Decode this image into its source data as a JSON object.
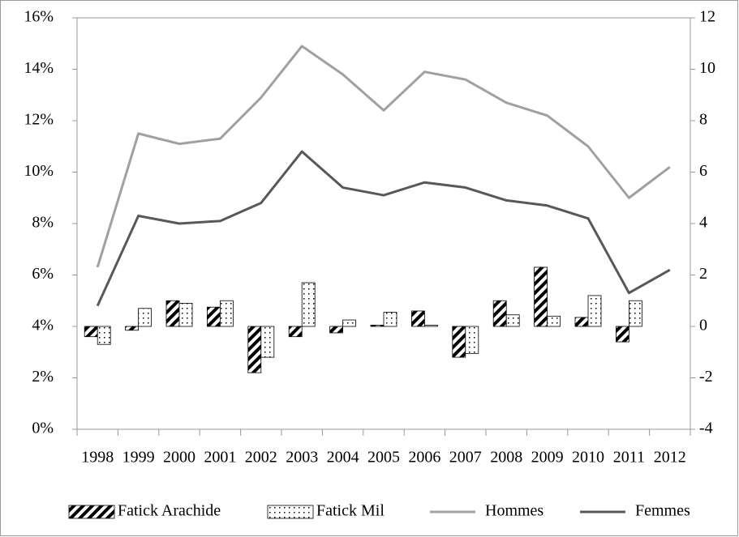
{
  "chart_data": {
    "type": "bar-line",
    "categories": [
      "1998",
      "1999",
      "2000",
      "2001",
      "2002",
      "2003",
      "2004",
      "2005",
      "2006",
      "2007",
      "2008",
      "2009",
      "2010",
      "2011",
      "2012"
    ],
    "ylim": [
      0,
      16
    ],
    "yticks": [
      {
        "value": 0,
        "label": "0%"
      },
      {
        "value": 2,
        "label": "2%"
      },
      {
        "value": 4,
        "label": "4%"
      },
      {
        "value": 6,
        "label": "6%"
      },
      {
        "value": 8,
        "label": "8%"
      },
      {
        "value": 10,
        "label": "10%"
      },
      {
        "value": 12,
        "label": "12%"
      },
      {
        "value": 14,
        "label": "14%"
      },
      {
        "value": 16,
        "label": "16%"
      }
    ],
    "y2lim": [
      -4,
      12
    ],
    "y2ticks": [
      -4,
      -2,
      0,
      2,
      4,
      6,
      8,
      10,
      12
    ],
    "series": [
      {
        "name": "Fatick Arachide",
        "type": "bar",
        "pattern": "hatch",
        "axis": "y2",
        "color": "#000000",
        "values": [
          -0.4,
          -0.15,
          1.0,
          0.75,
          -1.8,
          -0.4,
          -0.25,
          0.05,
          0.6,
          -1.2,
          1.0,
          2.3,
          0.35,
          -0.6,
          null
        ]
      },
      {
        "name": "Fatick Mil",
        "type": "bar",
        "pattern": "dots",
        "axis": "y2",
        "color": "#000000",
        "values": [
          -0.7,
          0.7,
          0.9,
          1.0,
          -1.2,
          1.7,
          0.25,
          0.55,
          0.05,
          -1.05,
          0.45,
          0.4,
          1.2,
          1.0,
          null
        ]
      },
      {
        "name": "Hommes",
        "type": "line",
        "color": "#a0a0a0",
        "values": [
          6.3,
          11.5,
          11.1,
          11.3,
          12.9,
          14.9,
          13.8,
          12.4,
          13.9,
          13.6,
          12.7,
          12.2,
          11.0,
          9.0,
          10.2
        ]
      },
      {
        "name": "Femmes",
        "type": "line",
        "color": "#585858",
        "values": [
          4.8,
          8.3,
          8.0,
          8.1,
          8.8,
          10.8,
          9.4,
          9.1,
          9.6,
          9.4,
          8.9,
          8.7,
          8.2,
          5.3,
          6.2
        ]
      }
    ]
  }
}
